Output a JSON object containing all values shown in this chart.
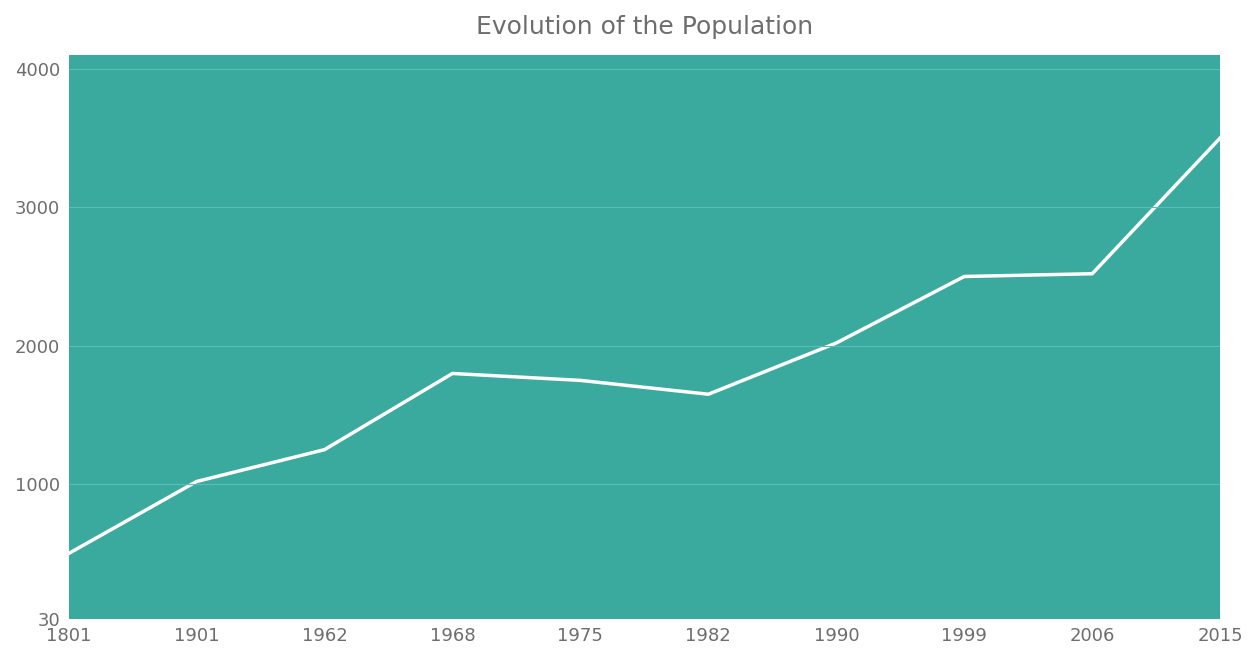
{
  "title": "Evolution of the Population",
  "title_fontsize": 18,
  "title_color": "#6d6d6d",
  "background_color": "#3aaa9e",
  "figure_bg": "#ffffff",
  "line_color": "#ffffff",
  "line_width": 2.5,
  "grid_color": "#5bbdb7",
  "x_labels": [
    "1801",
    "1901",
    "1962",
    "1968",
    "1975",
    "1982",
    "1990",
    "1999",
    "2006",
    "2015"
  ],
  "y_values": [
    500,
    1020,
    1250,
    1800,
    1750,
    1650,
    2020,
    2500,
    2520,
    3500
  ],
  "y_ticks": [
    30,
    1000,
    2000,
    3000,
    4000
  ],
  "ylim": [
    30,
    4100
  ],
  "tick_fontsize": 13,
  "tick_color": "#6d6d6d"
}
